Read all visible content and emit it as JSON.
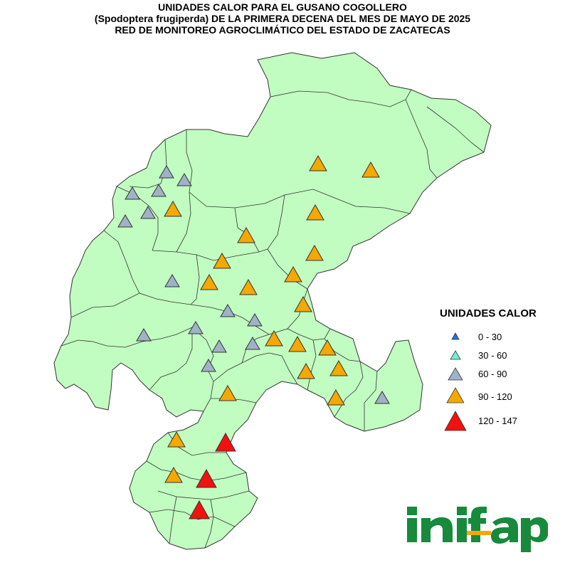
{
  "title": {
    "line1": "UNIDADES CALOR PARA EL GUSANO COGOLLERO",
    "line2": "(Spodoptera frugiperda) DE LA PRIMERA DECENA DEL MES DE MAYO DE 2025",
    "line3": "RED DE MONITOREO AGROCLIMÁTICO DEL ESTADO DE ZACATECAS"
  },
  "colors": {
    "land": "#c1fcc1",
    "border": "#333333",
    "class_0_30": "#1e73e6",
    "class_30_60": "#6ff0d8",
    "class_60_90": "#9fb2c8",
    "class_90_120": "#f5a800",
    "class_120_147": "#f21010",
    "logo": "#178a3c"
  },
  "legend": {
    "title": "UNIDADES CALOR",
    "items": [
      {
        "label": "0 - 30",
        "class": "class_0_30"
      },
      {
        "label": "30 - 60",
        "class": "class_30_60"
      },
      {
        "label": "60 - 90",
        "class": "class_60_90"
      },
      {
        "label": "90 - 120",
        "class": "class_90_120"
      },
      {
        "label": "120 - 147",
        "class": "class_120_147"
      }
    ]
  },
  "logo_text": "inifap"
}
